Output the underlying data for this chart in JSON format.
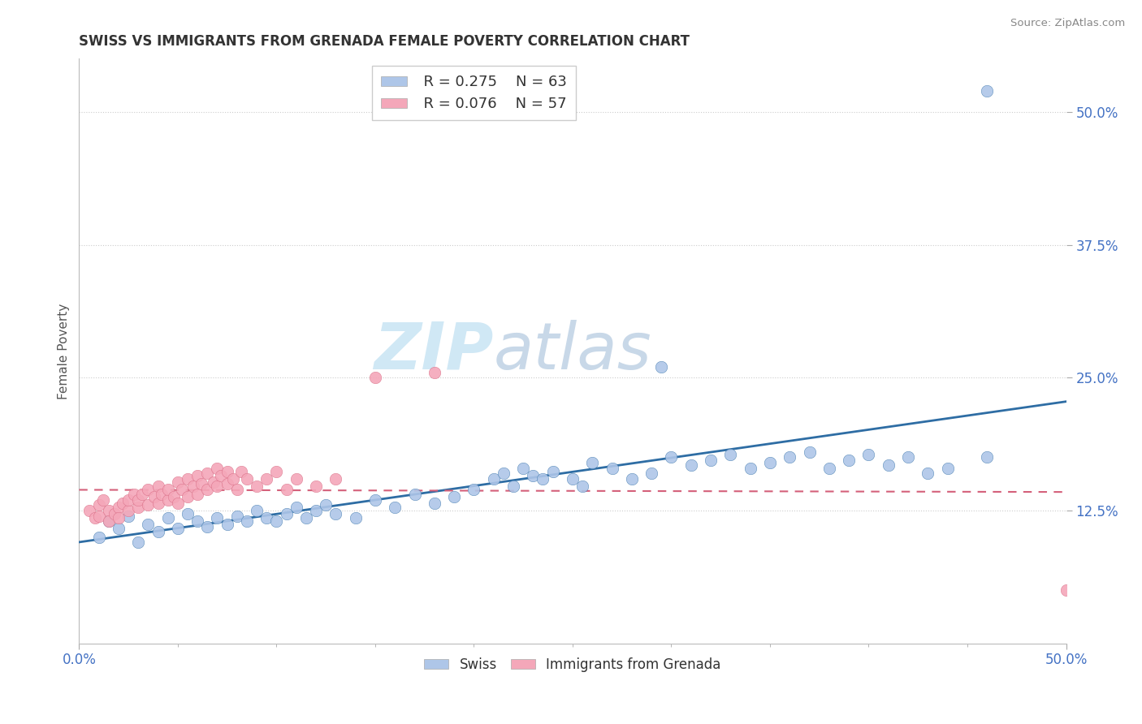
{
  "title": "SWISS VS IMMIGRANTS FROM GRENADA FEMALE POVERTY CORRELATION CHART",
  "source": "Source: ZipAtlas.com",
  "ylabel": "Female Poverty",
  "ytick_labels": [
    "12.5%",
    "25.0%",
    "37.5%",
    "50.0%"
  ],
  "ytick_values": [
    0.125,
    0.25,
    0.375,
    0.5
  ],
  "xlim": [
    0.0,
    0.5
  ],
  "ylim": [
    0.0,
    0.55
  ],
  "xtick_labels": [
    "0.0%",
    "50.0%"
  ],
  "xtick_values": [
    0.0,
    0.5
  ],
  "legend_r_swiss": "R = 0.275",
  "legend_n_swiss": "N = 63",
  "legend_r_grenada": "R = 0.076",
  "legend_n_grenada": "N = 57",
  "swiss_color": "#AEC6E8",
  "grenada_color": "#F4A7B9",
  "swiss_line_color": "#2E6DA4",
  "grenada_line_color": "#D4607A",
  "watermark_zip": "ZIP",
  "watermark_atlas": "atlas",
  "bottom_label_swiss": "Swiss",
  "bottom_label_grenada": "Immigrants from Grenada"
}
